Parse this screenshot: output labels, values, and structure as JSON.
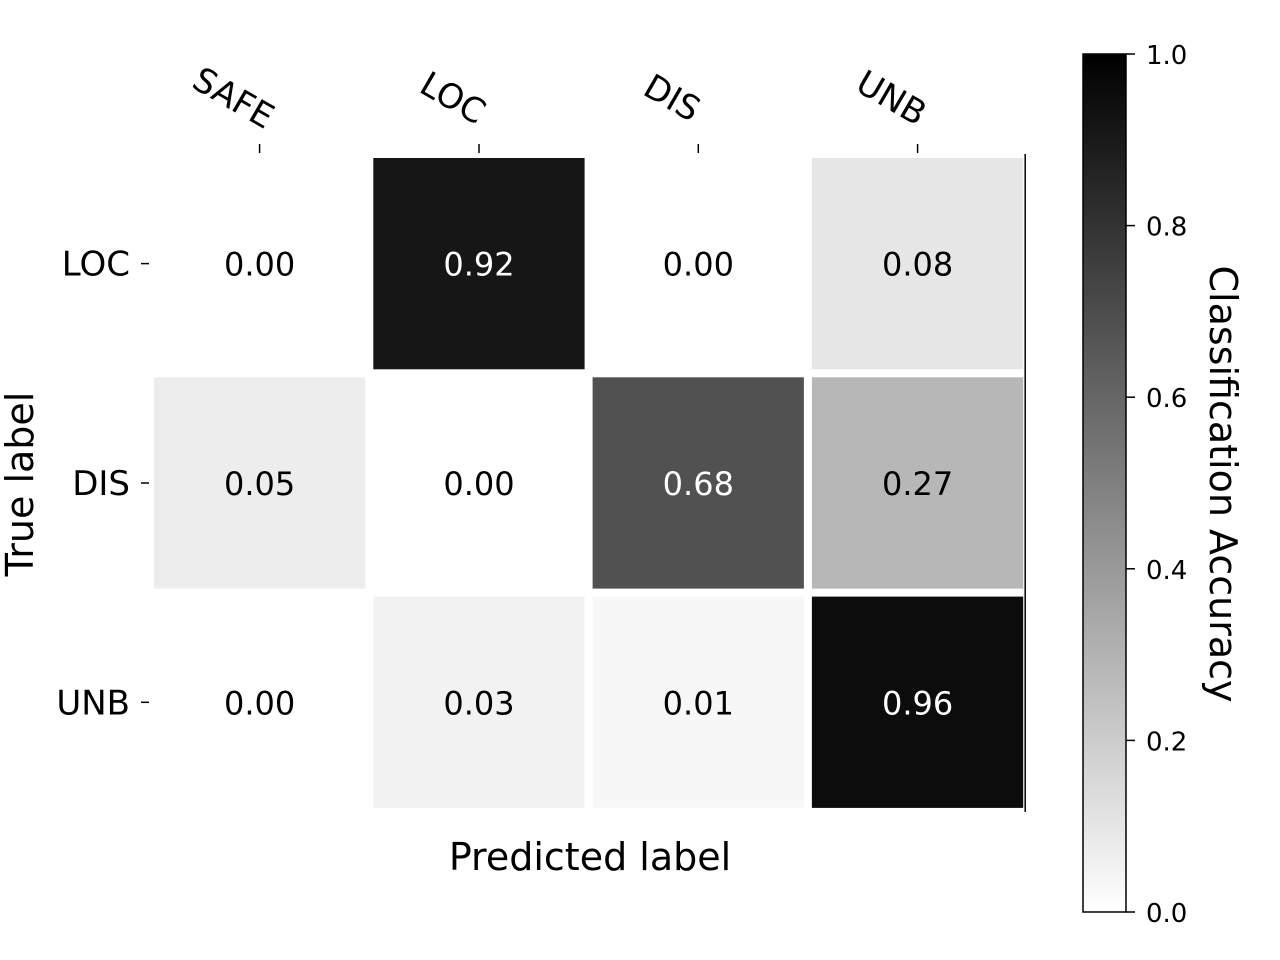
{
  "chart_data": {
    "type": "heatmap",
    "title": "",
    "xlabel": "Predicted label",
    "ylabel": "True label",
    "x_categories": [
      "SAFE",
      "LOC",
      "DIS",
      "UNB"
    ],
    "y_categories": [
      "LOC",
      "DIS",
      "UNB"
    ],
    "values": [
      [
        0.0,
        0.92,
        0.0,
        0.08
      ],
      [
        0.05,
        0.0,
        0.68,
        0.27
      ],
      [
        0.0,
        0.03,
        0.01,
        0.96
      ]
    ],
    "value_format": "2-decimal",
    "colormap": "greys",
    "colorbar": {
      "label": "Classification Accuracy",
      "range": [
        0.0,
        1.0
      ],
      "ticks": [
        "0.0",
        "0.2",
        "0.4",
        "0.6",
        "0.8",
        "1.0"
      ]
    },
    "x_tick_position": "top",
    "x_tick_rotation_deg": 30,
    "grid": false
  }
}
